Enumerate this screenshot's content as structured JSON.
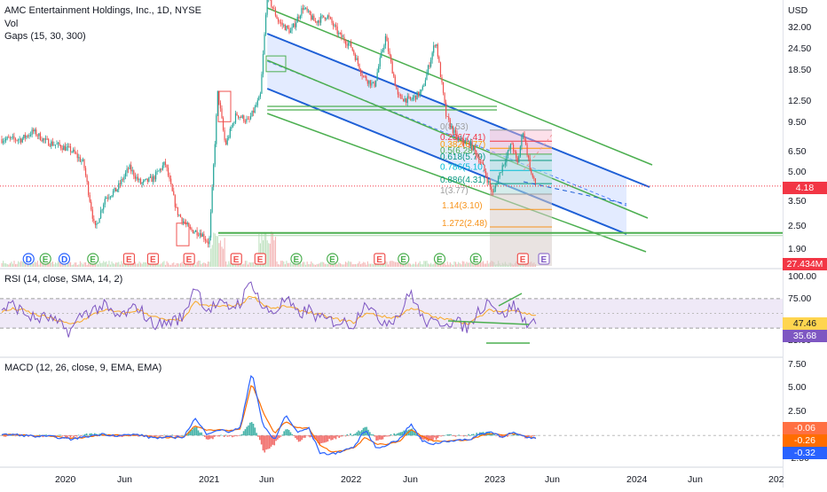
{
  "main_legend": {
    "title": "AMC Entertainment Holdings, Inc., 1D, NYSE",
    "vol": "Vol",
    "gaps": "Gaps (15, 30, 300)"
  },
  "rsi_legend": "RSI (14, close, SMA, 14, 2)",
  "macd_legend": "MACD (12, 26, close, 9, EMA, EMA)",
  "price_axis": {
    "currency": "USD",
    "ticks": [
      "32.00",
      "24.50",
      "18.50",
      "12.50",
      "9.50",
      "6.50",
      "5.00",
      "3.50",
      "2.50",
      "1.90"
    ],
    "last_price": "4.18",
    "volume_tag": "27.434M"
  },
  "rsi_axis": {
    "ticks": [
      "100.00",
      "75.00",
      "25.00"
    ],
    "value_tags": [
      "47.46",
      "35.68"
    ]
  },
  "macd_axis": {
    "ticks": [
      "7.50",
      "5.00",
      "2.50",
      "-2.50"
    ],
    "value_tags": [
      "-0.06",
      "-0.26",
      "-0.32"
    ]
  },
  "time_axis": [
    "2020",
    "Jun",
    "2021",
    "Jun",
    "2022",
    "Jun",
    "2023",
    "Jun",
    "2024",
    "Jun",
    "202"
  ],
  "fib_labels": [
    "0(8.53)",
    "0.236(7.41)",
    "0.382(6.77)",
    "0.5(6.28)",
    "0.618(5.79)",
    "0.786(5.10)",
    "0.886(4.31)",
    "1(3.77)",
    "1.14(3.10)",
    "1.272(2.48)"
  ],
  "earnings_marker": "E",
  "dividend_marker": "D",
  "colors": {
    "up": "#26a69a",
    "down": "#ef5350",
    "price_line": "#f23645",
    "channel_blue": "#1e5fd6",
    "channel_green": "#4caf50",
    "rsi_line": "#7e57c2",
    "rsi_band": "#ede7f6",
    "macd_line": "#2962ff",
    "signal_line": "#ff6d00",
    "fib_orange": "#f7931a",
    "fib_teal": "#089981"
  },
  "chart_data": [
    {
      "type": "candlestick",
      "title": "AMC Entertainment Holdings, Inc., 1D, NYSE",
      "ylabel": "USD",
      "yscale": "log",
      "ylim": [
        1.6,
        50
      ],
      "x_range": [
        "2019-09",
        "2025-01"
      ],
      "close_path": [
        [
          "2019-09-15",
          7.6
        ],
        [
          "2019-10-15",
          8.4
        ],
        [
          "2019-11-15",
          7.4
        ],
        [
          "2019-12-20",
          7.0
        ],
        [
          "2020-01-20",
          6.6
        ],
        [
          "2020-02-20",
          5.6
        ],
        [
          "2020-03-20",
          2.4
        ],
        [
          "2020-04-15",
          3.6
        ],
        [
          "2020-05-15",
          4.0
        ],
        [
          "2020-06-15",
          5.3
        ],
        [
          "2020-07-15",
          4.3
        ],
        [
          "2020-08-15",
          4.6
        ],
        [
          "2020-09-15",
          5.6
        ],
        [
          "2020-10-15",
          3.0
        ],
        [
          "2020-11-15",
          2.4
        ],
        [
          "2020-12-15",
          2.3
        ],
        [
          "2021-01-05",
          2.0
        ],
        [
          "2021-01-27",
          14.0
        ],
        [
          "2021-02-15",
          7.0
        ],
        [
          "2021-03-15",
          10.5
        ],
        [
          "2021-04-15",
          9.5
        ],
        [
          "2021-05-15",
          13.0
        ],
        [
          "2021-06-02",
          48.0
        ],
        [
          "2021-07-01",
          34.0
        ],
        [
          "2021-08-01",
          30.0
        ],
        [
          "2021-09-01",
          41.0
        ],
        [
          "2021-10-01",
          34.0
        ],
        [
          "2021-11-01",
          37.0
        ],
        [
          "2021-12-01",
          29.0
        ],
        [
          "2022-01-01",
          25.0
        ],
        [
          "2022-02-01",
          17.0
        ],
        [
          "2022-03-01",
          15.0
        ],
        [
          "2022-03-30",
          28.0
        ],
        [
          "2022-05-01",
          13.0
        ],
        [
          "2022-06-01",
          12.5
        ],
        [
          "2022-07-01",
          14.0
        ],
        [
          "2022-08-05",
          27.0
        ],
        [
          "2022-09-01",
          10.0
        ],
        [
          "2022-10-01",
          7.5
        ],
        [
          "2022-11-01",
          7.2
        ],
        [
          "2022-12-01",
          5.5
        ],
        [
          "2022-12-28",
          3.77
        ],
        [
          "2023-01-20",
          5.3
        ],
        [
          "2023-02-15",
          7.2
        ],
        [
          "2023-03-01",
          5.5
        ],
        [
          "2023-03-15",
          8.53
        ],
        [
          "2023-04-05",
          4.9
        ],
        [
          "2023-04-17",
          4.18
        ]
      ],
      "last_close": 4.18,
      "fib_retracement": {
        "levels": [
          0,
          0.236,
          0.382,
          0.5,
          0.618,
          0.786,
          0.886,
          1,
          1.14,
          1.272
        ],
        "prices": [
          8.53,
          7.41,
          6.77,
          6.28,
          5.79,
          5.1,
          4.31,
          3.77,
          3.1,
          2.48
        ]
      },
      "support_level": 2.35,
      "volume_last": "27.434M",
      "earnings_dates": [
        "2019-11",
        "2020-03",
        "2020-06",
        "2020-08",
        "2020-11",
        "2021-03",
        "2021-05",
        "2021-08",
        "2021-11",
        "2022-03",
        "2022-05",
        "2022-08",
        "2022-11",
        "2023-03"
      ],
      "dividend_dates": [
        "2019-09",
        "2019-12"
      ]
    },
    {
      "type": "line",
      "title": "RSI (14, close, SMA, 14, 2)",
      "ylim": [
        0,
        100
      ],
      "bands": [
        30,
        70
      ],
      "last_values": {
        "rsi": 35.68,
        "sma": 47.46
      },
      "series": [
        {
          "name": "RSI",
          "values": [
            55,
            62,
            50,
            42,
            45,
            35,
            25,
            48,
            55,
            60,
            45,
            50,
            60,
            38,
            35,
            40,
            45,
            90,
            55,
            62,
            58,
            65,
            95,
            55,
            52,
            70,
            48,
            55,
            42,
            40,
            38,
            35,
            70,
            42,
            40,
            48,
            80,
            42,
            35,
            40,
            38,
            30,
            55,
            70,
            45,
            62,
            40,
            35.68
          ]
        },
        {
          "name": "SMA",
          "values": [
            52,
            56,
            54,
            48,
            45,
            40,
            35,
            40,
            48,
            55,
            52,
            50,
            55,
            48,
            42,
            40,
            42,
            65,
            60,
            60,
            60,
            62,
            75,
            62,
            56,
            60,
            55,
            52,
            48,
            44,
            40,
            38,
            50,
            48,
            44,
            46,
            58,
            52,
            45,
            42,
            40,
            36,
            45,
            55,
            52,
            56,
            50,
            47.46
          ]
        }
      ]
    },
    {
      "type": "line",
      "title": "MACD (12, 26, close, 9, EMA, EMA)",
      "ylim": [
        -3.0,
        7.8
      ],
      "last_values": {
        "histogram": -0.06,
        "signal": -0.26,
        "macd": -0.32
      },
      "series": [
        {
          "name": "MACD",
          "values": [
            0.05,
            0.1,
            0,
            -0.1,
            -0.1,
            -0.2,
            -0.4,
            -0.2,
            0,
            0.15,
            0,
            0.05,
            0.1,
            -0.2,
            -0.25,
            -0.2,
            -0.15,
            1.8,
            0.2,
            0.6,
            0.4,
            0.8,
            6.8,
            1.0,
            -0.5,
            2.2,
            0.3,
            0.8,
            -1.8,
            -2.0,
            -1.6,
            -1.2,
            0.6,
            -1.4,
            -0.9,
            -0.4,
            1.2,
            -0.6,
            -0.9,
            -0.6,
            -0.5,
            -0.5,
            0.1,
            0.4,
            -0.1,
            0.3,
            -0.2,
            -0.32
          ]
        },
        {
          "name": "Signal",
          "values": [
            0.05,
            0.08,
            0.04,
            -0.05,
            -0.08,
            -0.15,
            -0.3,
            -0.25,
            -0.08,
            0.08,
            0.05,
            0.04,
            0.08,
            -0.1,
            -0.2,
            -0.2,
            -0.17,
            1.0,
            0.6,
            0.6,
            0.5,
            0.7,
            5.5,
            2.5,
            0.2,
            1.5,
            0.8,
            0.8,
            -1.0,
            -1.7,
            -1.6,
            -1.3,
            -0.2,
            -0.9,
            -0.9,
            -0.6,
            0.6,
            -0.1,
            -0.6,
            -0.6,
            -0.5,
            -0.5,
            -0.1,
            0.2,
            0.05,
            0.2,
            -0.05,
            -0.26
          ]
        }
      ]
    }
  ]
}
